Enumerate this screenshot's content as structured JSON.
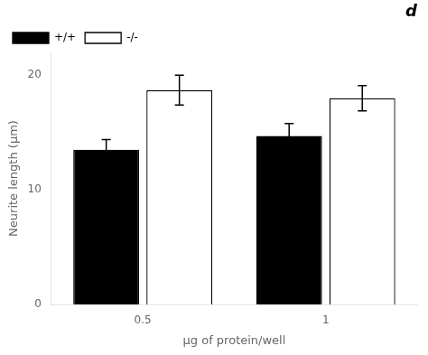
{
  "chart_data": {
    "type": "bar",
    "categories": [
      "0.5",
      "1"
    ],
    "series": [
      {
        "name": "+/+",
        "color": "#000000",
        "values": [
          13.5,
          14.7
        ],
        "errors": [
          0.9,
          1.1
        ]
      },
      {
        "name": "-/-",
        "color": "#ffffff",
        "values": [
          18.7,
          18.0
        ],
        "errors": [
          1.3,
          1.1
        ]
      }
    ],
    "xlabel": "µg of protein/well",
    "ylabel": "Neurite length (µm)",
    "ylim": [
      0,
      22
    ],
    "yticks": [
      0,
      10,
      20
    ],
    "annotations": [
      {
        "text": "d"
      }
    ],
    "legend": "upper left",
    "grid": false
  }
}
